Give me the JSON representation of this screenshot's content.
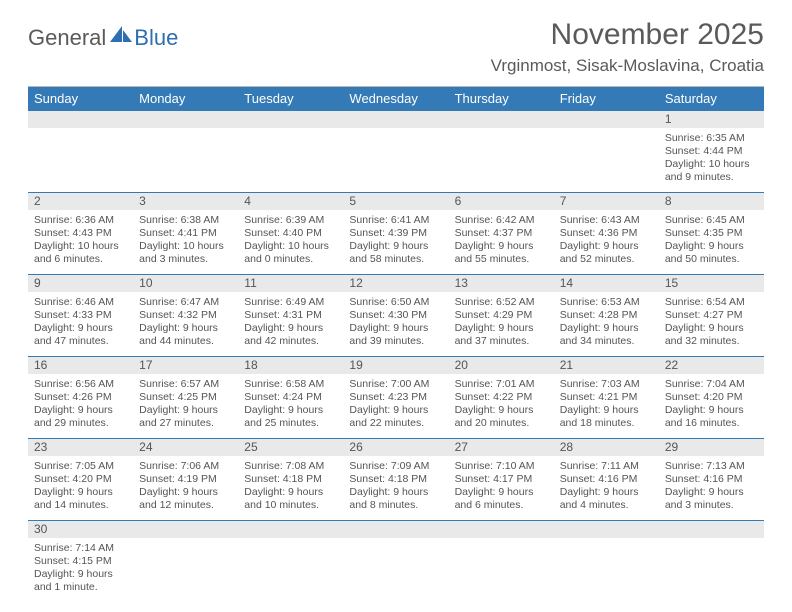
{
  "brand": {
    "general": "General",
    "blue": "Blue"
  },
  "title": "November 2025",
  "location": "Vrginmost, Sisak-Moslavina, Croatia",
  "dayheaders": [
    "Sunday",
    "Monday",
    "Tuesday",
    "Wednesday",
    "Thursday",
    "Friday",
    "Saturday"
  ],
  "colors": {
    "header_bg": "#337ab7",
    "header_text": "#ffffff",
    "daynum_bg": "#e9e9e9",
    "rule": "#337ab7",
    "text": "#555555"
  },
  "weeks": [
    {
      "nums": [
        "",
        "",
        "",
        "",
        "",
        "",
        "1"
      ],
      "cells": [
        null,
        null,
        null,
        null,
        null,
        null,
        {
          "sunrise": "Sunrise: 6:35 AM",
          "sunset": "Sunset: 4:44 PM",
          "day1": "Daylight: 10 hours",
          "day2": "and 9 minutes."
        }
      ]
    },
    {
      "nums": [
        "2",
        "3",
        "4",
        "5",
        "6",
        "7",
        "8"
      ],
      "cells": [
        {
          "sunrise": "Sunrise: 6:36 AM",
          "sunset": "Sunset: 4:43 PM",
          "day1": "Daylight: 10 hours",
          "day2": "and 6 minutes."
        },
        {
          "sunrise": "Sunrise: 6:38 AM",
          "sunset": "Sunset: 4:41 PM",
          "day1": "Daylight: 10 hours",
          "day2": "and 3 minutes."
        },
        {
          "sunrise": "Sunrise: 6:39 AM",
          "sunset": "Sunset: 4:40 PM",
          "day1": "Daylight: 10 hours",
          "day2": "and 0 minutes."
        },
        {
          "sunrise": "Sunrise: 6:41 AM",
          "sunset": "Sunset: 4:39 PM",
          "day1": "Daylight: 9 hours",
          "day2": "and 58 minutes."
        },
        {
          "sunrise": "Sunrise: 6:42 AM",
          "sunset": "Sunset: 4:37 PM",
          "day1": "Daylight: 9 hours",
          "day2": "and 55 minutes."
        },
        {
          "sunrise": "Sunrise: 6:43 AM",
          "sunset": "Sunset: 4:36 PM",
          "day1": "Daylight: 9 hours",
          "day2": "and 52 minutes."
        },
        {
          "sunrise": "Sunrise: 6:45 AM",
          "sunset": "Sunset: 4:35 PM",
          "day1": "Daylight: 9 hours",
          "day2": "and 50 minutes."
        }
      ]
    },
    {
      "nums": [
        "9",
        "10",
        "11",
        "12",
        "13",
        "14",
        "15"
      ],
      "cells": [
        {
          "sunrise": "Sunrise: 6:46 AM",
          "sunset": "Sunset: 4:33 PM",
          "day1": "Daylight: 9 hours",
          "day2": "and 47 minutes."
        },
        {
          "sunrise": "Sunrise: 6:47 AM",
          "sunset": "Sunset: 4:32 PM",
          "day1": "Daylight: 9 hours",
          "day2": "and 44 minutes."
        },
        {
          "sunrise": "Sunrise: 6:49 AM",
          "sunset": "Sunset: 4:31 PM",
          "day1": "Daylight: 9 hours",
          "day2": "and 42 minutes."
        },
        {
          "sunrise": "Sunrise: 6:50 AM",
          "sunset": "Sunset: 4:30 PM",
          "day1": "Daylight: 9 hours",
          "day2": "and 39 minutes."
        },
        {
          "sunrise": "Sunrise: 6:52 AM",
          "sunset": "Sunset: 4:29 PM",
          "day1": "Daylight: 9 hours",
          "day2": "and 37 minutes."
        },
        {
          "sunrise": "Sunrise: 6:53 AM",
          "sunset": "Sunset: 4:28 PM",
          "day1": "Daylight: 9 hours",
          "day2": "and 34 minutes."
        },
        {
          "sunrise": "Sunrise: 6:54 AM",
          "sunset": "Sunset: 4:27 PM",
          "day1": "Daylight: 9 hours",
          "day2": "and 32 minutes."
        }
      ]
    },
    {
      "nums": [
        "16",
        "17",
        "18",
        "19",
        "20",
        "21",
        "22"
      ],
      "cells": [
        {
          "sunrise": "Sunrise: 6:56 AM",
          "sunset": "Sunset: 4:26 PM",
          "day1": "Daylight: 9 hours",
          "day2": "and 29 minutes."
        },
        {
          "sunrise": "Sunrise: 6:57 AM",
          "sunset": "Sunset: 4:25 PM",
          "day1": "Daylight: 9 hours",
          "day2": "and 27 minutes."
        },
        {
          "sunrise": "Sunrise: 6:58 AM",
          "sunset": "Sunset: 4:24 PM",
          "day1": "Daylight: 9 hours",
          "day2": "and 25 minutes."
        },
        {
          "sunrise": "Sunrise: 7:00 AM",
          "sunset": "Sunset: 4:23 PM",
          "day1": "Daylight: 9 hours",
          "day2": "and 22 minutes."
        },
        {
          "sunrise": "Sunrise: 7:01 AM",
          "sunset": "Sunset: 4:22 PM",
          "day1": "Daylight: 9 hours",
          "day2": "and 20 minutes."
        },
        {
          "sunrise": "Sunrise: 7:03 AM",
          "sunset": "Sunset: 4:21 PM",
          "day1": "Daylight: 9 hours",
          "day2": "and 18 minutes."
        },
        {
          "sunrise": "Sunrise: 7:04 AM",
          "sunset": "Sunset: 4:20 PM",
          "day1": "Daylight: 9 hours",
          "day2": "and 16 minutes."
        }
      ]
    },
    {
      "nums": [
        "23",
        "24",
        "25",
        "26",
        "27",
        "28",
        "29"
      ],
      "cells": [
        {
          "sunrise": "Sunrise: 7:05 AM",
          "sunset": "Sunset: 4:20 PM",
          "day1": "Daylight: 9 hours",
          "day2": "and 14 minutes."
        },
        {
          "sunrise": "Sunrise: 7:06 AM",
          "sunset": "Sunset: 4:19 PM",
          "day1": "Daylight: 9 hours",
          "day2": "and 12 minutes."
        },
        {
          "sunrise": "Sunrise: 7:08 AM",
          "sunset": "Sunset: 4:18 PM",
          "day1": "Daylight: 9 hours",
          "day2": "and 10 minutes."
        },
        {
          "sunrise": "Sunrise: 7:09 AM",
          "sunset": "Sunset: 4:18 PM",
          "day1": "Daylight: 9 hours",
          "day2": "and 8 minutes."
        },
        {
          "sunrise": "Sunrise: 7:10 AM",
          "sunset": "Sunset: 4:17 PM",
          "day1": "Daylight: 9 hours",
          "day2": "and 6 minutes."
        },
        {
          "sunrise": "Sunrise: 7:11 AM",
          "sunset": "Sunset: 4:16 PM",
          "day1": "Daylight: 9 hours",
          "day2": "and 4 minutes."
        },
        {
          "sunrise": "Sunrise: 7:13 AM",
          "sunset": "Sunset: 4:16 PM",
          "day1": "Daylight: 9 hours",
          "day2": "and 3 minutes."
        }
      ]
    },
    {
      "nums": [
        "30",
        "",
        "",
        "",
        "",
        "",
        ""
      ],
      "cells": [
        {
          "sunrise": "Sunrise: 7:14 AM",
          "sunset": "Sunset: 4:15 PM",
          "day1": "Daylight: 9 hours",
          "day2": "and 1 minute."
        },
        null,
        null,
        null,
        null,
        null,
        null
      ]
    }
  ]
}
